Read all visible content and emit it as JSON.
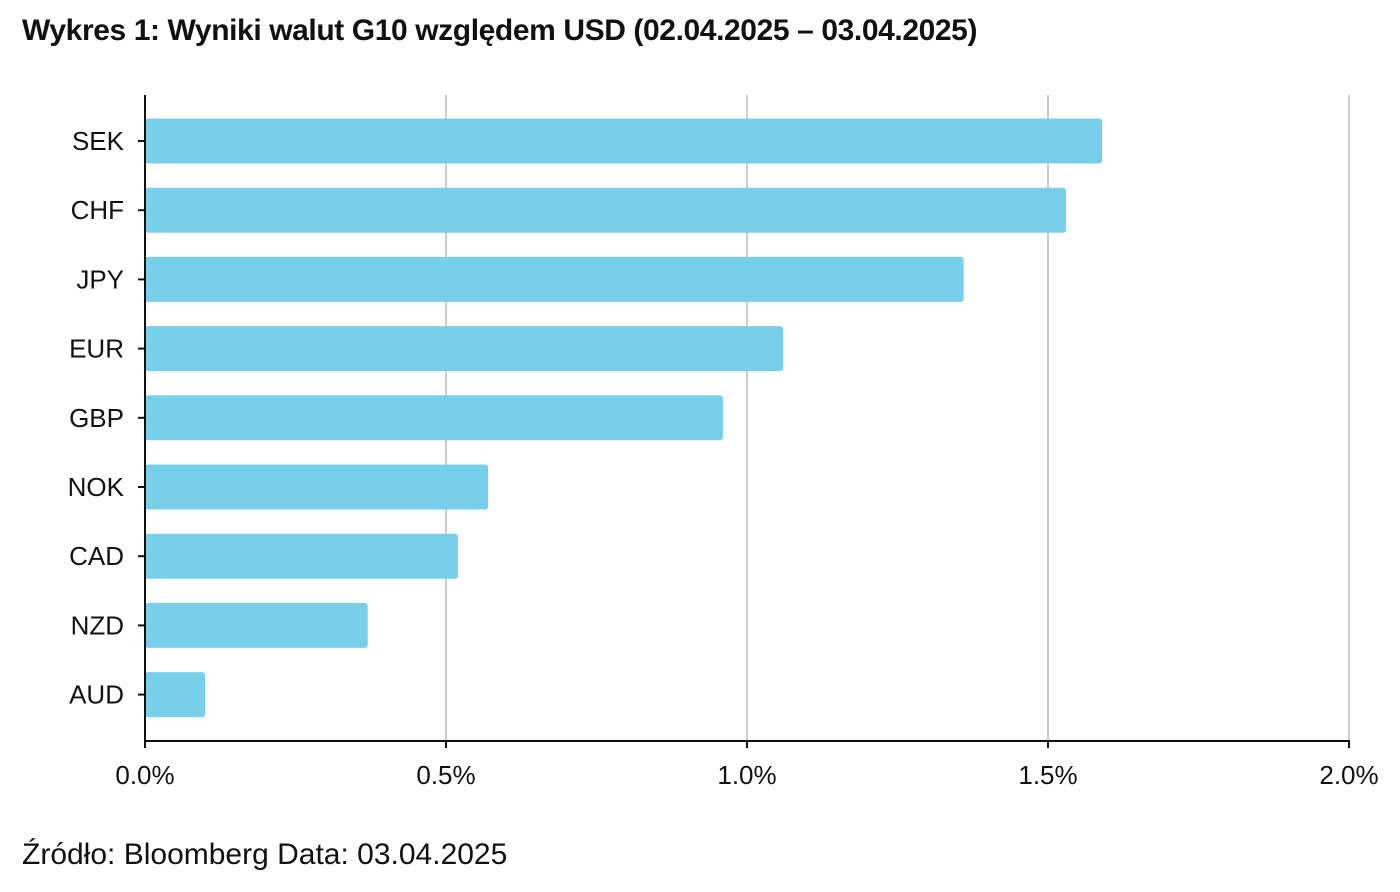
{
  "title": "Wykres 1: Wyniki walut G10 względem USD (02.04.2025 – 03.04.2025)",
  "source": "Źródło: Bloomberg Data: 03.04.2025",
  "chart_data": {
    "type": "bar",
    "orientation": "horizontal",
    "categories": [
      "SEK",
      "CHF",
      "JPY",
      "EUR",
      "GBP",
      "NOK",
      "CAD",
      "NZD",
      "AUD"
    ],
    "values": [
      1.59,
      1.53,
      1.36,
      1.06,
      0.96,
      0.57,
      0.52,
      0.37,
      0.1
    ],
    "xlim": [
      0,
      2.0
    ],
    "xticks": [
      0,
      0.5,
      1.0,
      1.5,
      2.0
    ],
    "xtick_labels": [
      "0.0%",
      "0.5%",
      "1.0%",
      "1.5%",
      "2.0%"
    ],
    "xlabel": "",
    "ylabel": "",
    "grid": "vertical",
    "legend": "none",
    "bar_color": "#78cfea",
    "grid_color": "#cccccc",
    "axis_color": "#111111"
  }
}
